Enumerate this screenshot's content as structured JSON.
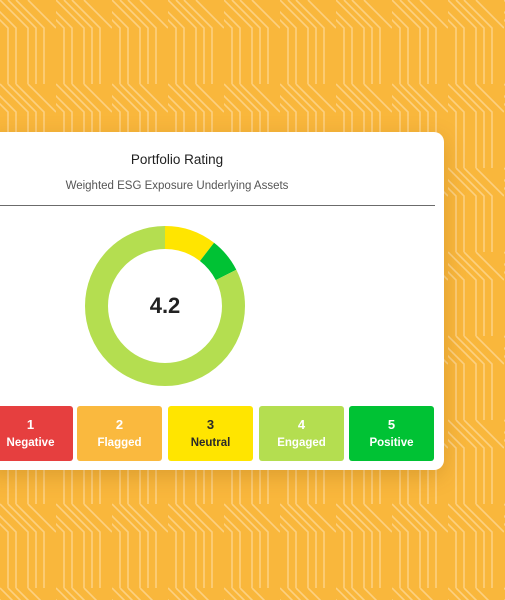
{
  "card": {
    "title": "Portfolio Rating",
    "subtitle": "Weighted ESG Exposure Underlying Assets"
  },
  "rating": {
    "score": "4.2",
    "donut_segments": [
      {
        "rating": 3,
        "fraction": 0.105,
        "color": "#ffe500"
      },
      {
        "rating": 5,
        "fraction": 0.07,
        "color": "#00c234"
      },
      {
        "rating": 4,
        "fraction": 0.825,
        "color": "#b4de50"
      }
    ]
  },
  "legend": [
    {
      "number": "1",
      "label": "Negative",
      "color": "#e63f3f",
      "text_color": "#ffffff"
    },
    {
      "number": "2",
      "label": "Flagged",
      "color": "#fab93e",
      "text_color": "#ffffff"
    },
    {
      "number": "3",
      "label": "Neutral",
      "color": "#ffe500",
      "text_color": "#2a2a2a"
    },
    {
      "number": "4",
      "label": "Engaged",
      "color": "#b4de50",
      "text_color": "#ffffff"
    },
    {
      "number": "5",
      "label": "Positive",
      "color": "#00c234",
      "text_color": "#ffffff"
    }
  ],
  "colors": {
    "background": "#f9b73c",
    "pattern_line": "#fcd080"
  }
}
